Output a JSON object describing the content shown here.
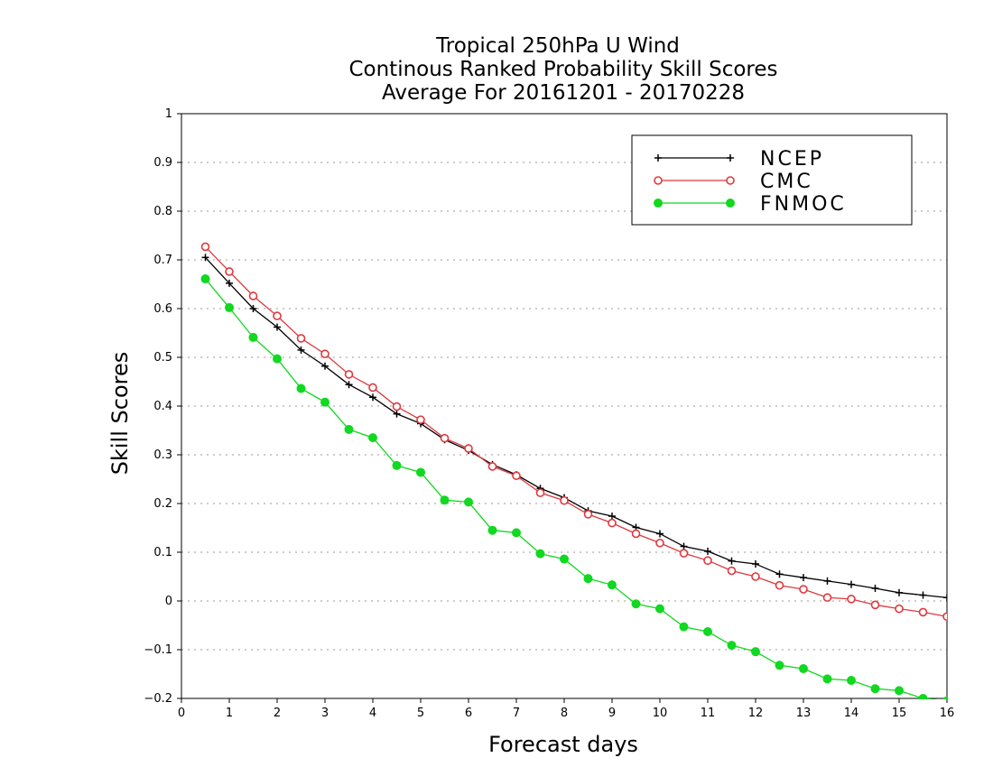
{
  "chart_data": {
    "type": "line",
    "title": [
      "Tropical 250hPa U Wind",
      "Continous Ranked Probability Skill Scores",
      "Average For 20161201 - 20170228"
    ],
    "xlabel": "Forecast days",
    "ylabel": "Skill Scores",
    "xlim": [
      0,
      16
    ],
    "ylim": [
      -0.2,
      1
    ],
    "x_ticks": [
      0,
      1,
      2,
      3,
      4,
      5,
      6,
      7,
      8,
      9,
      10,
      11,
      12,
      13,
      14,
      15,
      16
    ],
    "x_tick_labels": [
      "0",
      "1",
      "2",
      "3",
      "4",
      "5",
      "6",
      "7",
      "8",
      "9",
      "10",
      "11",
      "12",
      "13",
      "14",
      "15",
      "16"
    ],
    "y_ticks": [
      -0.2,
      -0.1,
      0,
      0.1,
      0.2,
      0.3,
      0.4,
      0.5,
      0.6,
      0.7,
      0.8,
      0.9,
      1
    ],
    "y_tick_labels": [
      "−0.2",
      "−0.1",
      "0",
      "0.1",
      "0.2",
      "0.3",
      "0.4",
      "0.5",
      "0.6",
      "0.7",
      "0.8",
      "0.9",
      "1"
    ],
    "grid": "horizontal dotted",
    "legend_position": "top-right",
    "x": [
      0.5,
      1,
      1.5,
      2,
      2.5,
      3,
      3.5,
      4,
      4.5,
      5,
      5.5,
      6,
      6.5,
      7,
      7.5,
      8,
      8.5,
      9,
      9.5,
      10,
      10.5,
      11,
      11.5,
      12,
      12.5,
      13,
      13.5,
      14,
      14.5,
      15,
      15.5,
      16
    ],
    "series": [
      {
        "name": "NCEP",
        "color": "#000000",
        "marker": "plus",
        "values": [
          0.705,
          0.652,
          0.6,
          0.562,
          0.515,
          0.482,
          0.444,
          0.418,
          0.384,
          0.364,
          0.331,
          0.309,
          0.28,
          0.259,
          0.231,
          0.212,
          0.185,
          0.174,
          0.151,
          0.138,
          0.112,
          0.102,
          0.082,
          0.076,
          0.055,
          0.048,
          0.041,
          0.034,
          0.026,
          0.017,
          0.012,
          0.007
        ]
      },
      {
        "name": "CMC",
        "color": "#e0383c",
        "marker": "open-circle",
        "values": [
          0.727,
          0.676,
          0.626,
          0.585,
          0.539,
          0.507,
          0.465,
          0.438,
          0.399,
          0.372,
          0.334,
          0.313,
          0.276,
          0.257,
          0.222,
          0.206,
          0.178,
          0.16,
          0.138,
          0.119,
          0.098,
          0.083,
          0.062,
          0.05,
          0.032,
          0.024,
          0.007,
          0.004,
          -0.008,
          -0.016,
          -0.023,
          -0.032
        ]
      },
      {
        "name": "FNMOC",
        "color": "#11d820",
        "marker": "filled-circle",
        "values": [
          0.661,
          0.602,
          0.541,
          0.497,
          0.436,
          0.408,
          0.352,
          0.335,
          0.278,
          0.264,
          0.207,
          0.203,
          0.145,
          0.14,
          0.097,
          0.086,
          0.046,
          0.033,
          -0.006,
          -0.016,
          -0.053,
          -0.063,
          -0.091,
          -0.104,
          -0.132,
          -0.139,
          -0.16,
          -0.163,
          -0.18,
          -0.184,
          -0.2,
          -0.205
        ]
      }
    ]
  }
}
